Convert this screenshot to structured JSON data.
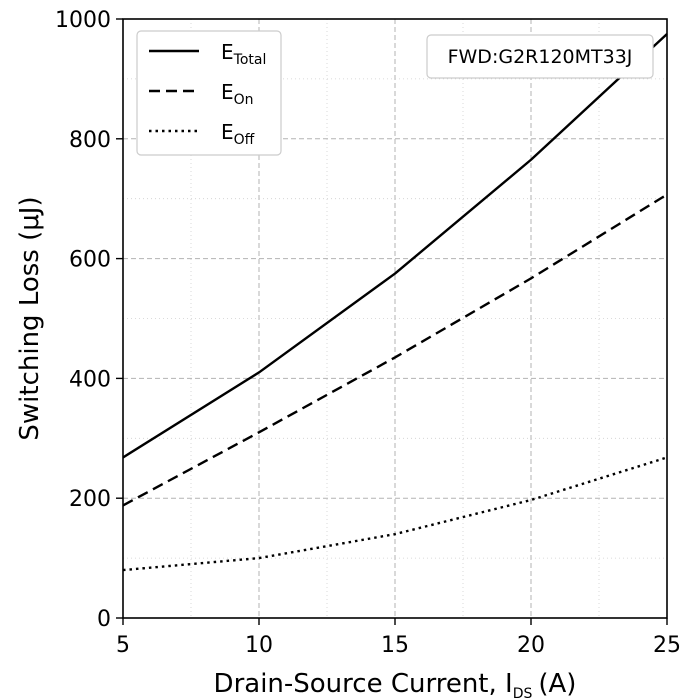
{
  "chart_data": {
    "type": "line",
    "xlabel": "Drain-Source Current, I",
    "xlabel_sub": "DS",
    "xlabel_unit": "(A)",
    "ylabel": "Switching Loss (μJ)",
    "xlim": [
      5,
      25
    ],
    "ylim": [
      0,
      1000
    ],
    "x_ticks": [
      "5",
      "10",
      "15",
      "20",
      "25"
    ],
    "y_ticks": [
      "0",
      "200",
      "400",
      "600",
      "800",
      "1000"
    ],
    "grid": true,
    "legend_position": "top-left",
    "annotation": "FWD:G2R120MT33J",
    "series": [
      {
        "name": "E",
        "name_sub": "Total",
        "style": "solid",
        "x": [
          5,
          10,
          15,
          20,
          25
        ],
        "y": [
          268,
          410,
          575,
          765,
          975
        ]
      },
      {
        "name": "E",
        "name_sub": "On",
        "style": "dashed",
        "x": [
          5,
          10,
          15,
          20,
          25
        ],
        "y": [
          188,
          310,
          435,
          567,
          707
        ]
      },
      {
        "name": "E",
        "name_sub": "Off",
        "style": "dotted",
        "x": [
          5,
          10,
          15,
          20,
          25
        ],
        "y": [
          80,
          100,
          140,
          197,
          268
        ]
      }
    ]
  }
}
